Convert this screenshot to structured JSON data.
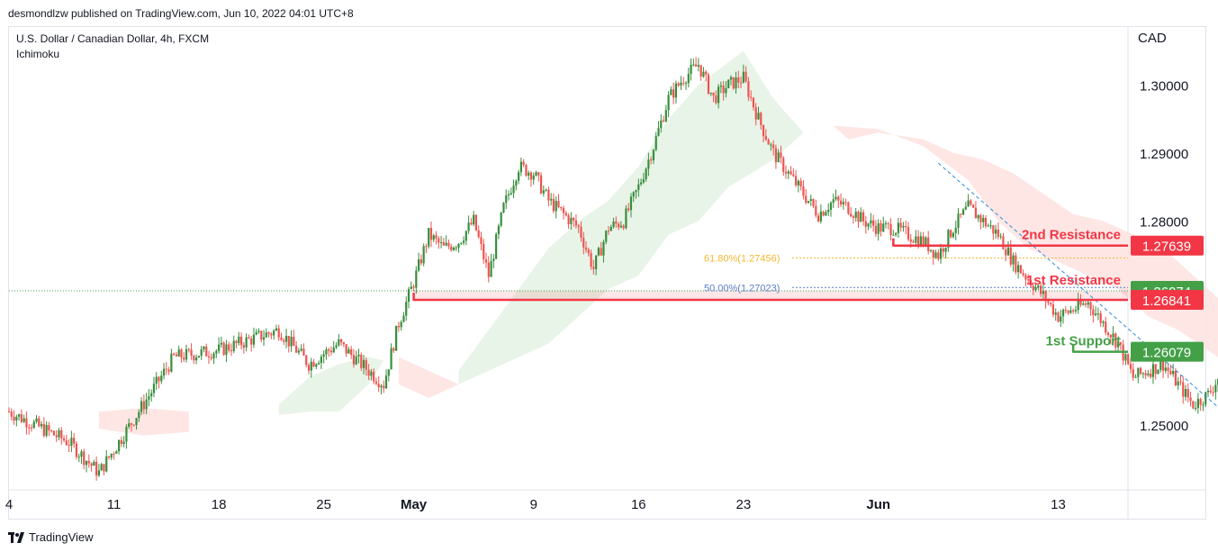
{
  "header": {
    "published_by": "desmondlzw published on TradingView.com, Jun 10, 2022 04:01 UTC+8"
  },
  "legend": {
    "symbol": "U.S. Dollar / Canadian Dollar, 4h, FXCM",
    "indicator": "Ichimoku"
  },
  "axis": {
    "currency": "CAD"
  },
  "footer": {
    "brand": "TradingView"
  },
  "colors": {
    "bull": "#26a69a",
    "bull_candle": "#388e3c",
    "bear_candle": "#ef5350",
    "resistance": "#f23645",
    "support": "#43a047",
    "fib_618": "#f5b731",
    "fib_50": "#5a7cc8",
    "cloud_bull": "#e6f3e6",
    "cloud_bear": "#fde3e1",
    "trend": "#2f8bdc"
  },
  "chart_data": {
    "type": "candlestick",
    "title": "U.S. Dollar / Canadian Dollar, 4h, FXCM",
    "x_ticks": [
      {
        "label": "4",
        "bold": false
      },
      {
        "label": "11",
        "bold": false
      },
      {
        "label": "18",
        "bold": false
      },
      {
        "label": "25",
        "bold": false
      },
      {
        "label": "May",
        "bold": true
      },
      {
        "label": "9",
        "bold": false
      },
      {
        "label": "16",
        "bold": false
      },
      {
        "label": "23",
        "bold": false
      },
      {
        "label": "Jun",
        "bold": true
      },
      {
        "label": "13",
        "bold": false
      }
    ],
    "y_ticks": [
      "1.30000",
      "1.29000",
      "1.28000",
      "1.25000"
    ],
    "y_tick_values": [
      1.3,
      1.29,
      1.28,
      1.25
    ],
    "ylim": [
      1.2405,
      1.3085
    ],
    "close_path": [
      [
        0,
        1.252
      ],
      [
        4,
        1.2475
      ],
      [
        6,
        1.243
      ],
      [
        11,
        1.26
      ],
      [
        14,
        1.261
      ],
      [
        18,
        1.264
      ],
      [
        20,
        1.259
      ],
      [
        22,
        1.262
      ],
      [
        25,
        1.256
      ],
      [
        26,
        1.265
      ],
      [
        27,
        1.271
      ],
      [
        28,
        1.278
      ],
      [
        29,
        1.276
      ],
      [
        30,
        1.277
      ],
      [
        31,
        1.28
      ],
      [
        32,
        1.272
      ],
      [
        33,
        1.282
      ],
      [
        34,
        1.288
      ],
      [
        35,
        1.287
      ],
      [
        36,
        1.283
      ],
      [
        37,
        1.281
      ],
      [
        38,
        1.279
      ],
      [
        39,
        1.273
      ],
      [
        40,
        1.279
      ],
      [
        41,
        1.28
      ],
      [
        42,
        1.285
      ],
      [
        43,
        1.291
      ],
      [
        44,
        1.298
      ],
      [
        45,
        1.301
      ],
      [
        46,
        1.303
      ],
      [
        47,
        1.298
      ],
      [
        48,
        1.3
      ],
      [
        49,
        1.301
      ],
      [
        50,
        1.295
      ],
      [
        51,
        1.29
      ],
      [
        52,
        1.287
      ],
      [
        53,
        1.284
      ],
      [
        54,
        1.281
      ],
      [
        55,
        1.283
      ],
      [
        56,
        1.282
      ],
      [
        57,
        1.28
      ],
      [
        58,
        1.279
      ],
      [
        59,
        1.279
      ],
      [
        60,
        1.278
      ],
      [
        61,
        1.277
      ],
      [
        62,
        1.275
      ],
      [
        63,
        1.279
      ],
      [
        64,
        1.282
      ],
      [
        65,
        1.28
      ],
      [
        66,
        1.278
      ],
      [
        67,
        1.274
      ],
      [
        68,
        1.2715
      ],
      [
        69,
        1.269
      ],
      [
        70,
        1.266
      ],
      [
        71,
        1.267
      ],
      [
        72,
        1.268
      ],
      [
        73,
        1.265
      ],
      [
        74,
        1.262
      ],
      [
        75,
        1.257
      ],
      [
        76,
        1.258
      ],
      [
        77,
        1.259
      ],
      [
        78,
        1.256
      ],
      [
        79,
        1.253
      ],
      [
        80,
        1.2545
      ],
      [
        81,
        1.258
      ],
      [
        82,
        1.264
      ],
      [
        82.5,
        1.2697
      ]
    ],
    "cloud_bull": [
      [
        [
          18,
          1.253
        ],
        [
          20,
          1.257
        ],
        [
          22,
          1.259
        ],
        [
          24,
          1.26
        ],
        [
          25,
          1.2595
        ],
        [
          24,
          1.256
        ],
        [
          22,
          1.252
        ],
        [
          20,
          1.252
        ],
        [
          18,
          1.2515
        ]
      ],
      [
        [
          30,
          1.258
        ],
        [
          32,
          1.264
        ],
        [
          34,
          1.27
        ],
        [
          36,
          1.276
        ],
        [
          38,
          1.28
        ],
        [
          40,
          1.283
        ],
        [
          42,
          1.288
        ],
        [
          44,
          1.295
        ],
        [
          46,
          1.3
        ],
        [
          49,
          1.305
        ],
        [
          51,
          1.298
        ],
        [
          53,
          1.293
        ],
        [
          51,
          1.289
        ],
        [
          48,
          1.285
        ],
        [
          46,
          1.28
        ],
        [
          44,
          1.278
        ],
        [
          42,
          1.272
        ],
        [
          40,
          1.27
        ],
        [
          38,
          1.266
        ],
        [
          36,
          1.262
        ],
        [
          34,
          1.26
        ],
        [
          32,
          1.258
        ],
        [
          30,
          1.256
        ]
      ]
    ],
    "cloud_bear": [
      [
        [
          6,
          1.252
        ],
        [
          9,
          1.2525
        ],
        [
          12,
          1.252
        ],
        [
          12,
          1.249
        ],
        [
          9,
          1.2485
        ],
        [
          6,
          1.2495
        ]
      ],
      [
        [
          26,
          1.26
        ],
        [
          28,
          1.258
        ],
        [
          30,
          1.256
        ],
        [
          28,
          1.254
        ],
        [
          26,
          1.256
        ]
      ],
      [
        [
          55,
          1.294
        ],
        [
          58,
          1.2935
        ],
        [
          61,
          1.291
        ],
        [
          64,
          1.286
        ],
        [
          66,
          1.28
        ],
        [
          68,
          1.276
        ],
        [
          70,
          1.274
        ],
        [
          72,
          1.272
        ],
        [
          74,
          1.27
        ],
        [
          76,
          1.266
        ],
        [
          78,
          1.264
        ],
        [
          80,
          1.261
        ],
        [
          82,
          1.258
        ],
        [
          84,
          1.255
        ],
        [
          83,
          1.26
        ],
        [
          81,
          1.268
        ],
        [
          79,
          1.272
        ],
        [
          77,
          1.276
        ],
        [
          75,
          1.278
        ],
        [
          73,
          1.28
        ],
        [
          71,
          1.281
        ],
        [
          69,
          1.284
        ],
        [
          67,
          1.287
        ],
        [
          65,
          1.289
        ],
        [
          63,
          1.29
        ],
        [
          61,
          1.292
        ],
        [
          58,
          1.293
        ],
        [
          56,
          1.292
        ]
      ]
    ],
    "horizontal_levels": [
      {
        "name": "1st Support",
        "price": 1.26079,
        "label_value": "1.26079",
        "x_start": 71,
        "kind": "support"
      },
      {
        "name": "1st Resistance",
        "price": 1.26974,
        "label_value": "1.26974",
        "x_start": 27,
        "kind": "resistance-zone-top"
      },
      {
        "name": "",
        "price": 1.26841,
        "label_value": "1.26841",
        "x_start": 27,
        "kind": "resistance"
      },
      {
        "name": "2nd Resistance",
        "price": 1.27639,
        "label_value": "1.27639",
        "x_start": 59,
        "kind": "resistance"
      }
    ],
    "annotations": {
      "second_resistance": "2nd Resistance",
      "first_resistance": "1st Resistance",
      "first_support": "1st Support",
      "fib_618": "61.80%(1.27456)",
      "fib_50": "50.00%(1.27023)"
    },
    "fibonacci": [
      {
        "label": "61.80%(1.27456)",
        "price": 1.27456
      },
      {
        "label": "50.00%(1.27023)",
        "price": 1.27023
      }
    ],
    "trendline": [
      [
        62,
        1.2885
      ],
      [
        81,
        1.252
      ]
    ],
    "last_price": 1.26974
  }
}
